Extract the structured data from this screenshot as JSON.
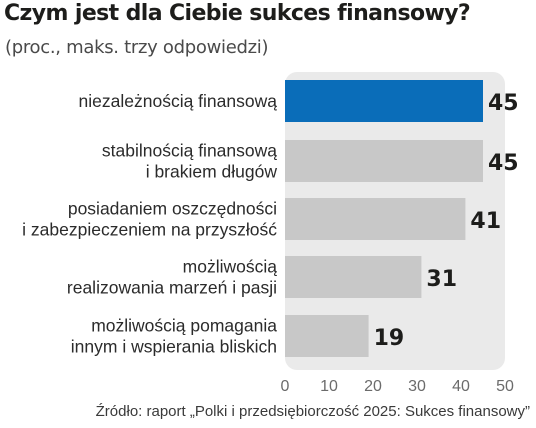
{
  "chart_data": {
    "type": "bar",
    "orientation": "horizontal",
    "title": "Czym jest dla Ciebie sukces finansowy?",
    "subtitle": "(proc., maks. trzy odpowiedzi)",
    "categories": [
      [
        "niezależnością finansową"
      ],
      [
        "stabilnością finansową",
        "i brakiem długów"
      ],
      [
        "posiadaniem oszczędności",
        "i zabezpieczeniem na przyszłość"
      ],
      [
        "możliwością",
        "realizowania marzeń i pasji"
      ],
      [
        "możliwością pomagania",
        "innym i wspierania bliskich"
      ]
    ],
    "values": [
      45,
      45,
      41,
      31,
      19
    ],
    "xlim": [
      0,
      50
    ],
    "xticks": [
      0,
      10,
      20,
      30,
      40,
      50
    ],
    "grid": false,
    "highlight_index": 0,
    "colors": {
      "highlight": "#0a6db9",
      "bar": "#c8c8c8",
      "panel": "#eaeaea"
    }
  },
  "source": "Źródło: raport „Polki i przedsiębiorczość 2025: Sukces finansowy”"
}
